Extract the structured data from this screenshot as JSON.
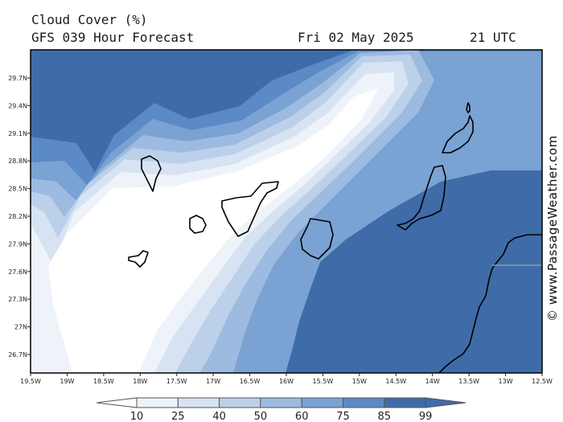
{
  "header": {
    "title": "Cloud Cover (%)",
    "subtitle": "GFS 039 Hour Forecast",
    "date": "Fri 02 May 2025",
    "time": "21 UTC"
  },
  "watermark": "© www.PassageWeather.com",
  "map": {
    "lat_labels": [
      "29.7N",
      "29.4N",
      "29.1N",
      "28.8N",
      "28.5N",
      "28.2N",
      "27.9N",
      "27.6N",
      "27.3N",
      "27N",
      "26.7N"
    ],
    "lon_labels": [
      "19.5W",
      "19W",
      "18.5W",
      "18W",
      "17.5W",
      "17W",
      "16.5W",
      "16W",
      "15.5W",
      "15W",
      "14.5W",
      "14W",
      "13.5W",
      "13W",
      "12.5W"
    ]
  },
  "color_scale": {
    "labels": [
      "10",
      "25",
      "40",
      "50",
      "60",
      "75",
      "85",
      "99"
    ],
    "colors": [
      "#ffffff",
      "#eef3fa",
      "#d7e3f2",
      "#bcd0ea",
      "#9dbbe0",
      "#7aa2d3",
      "#5b8ac6",
      "#3f6ca8"
    ]
  }
}
